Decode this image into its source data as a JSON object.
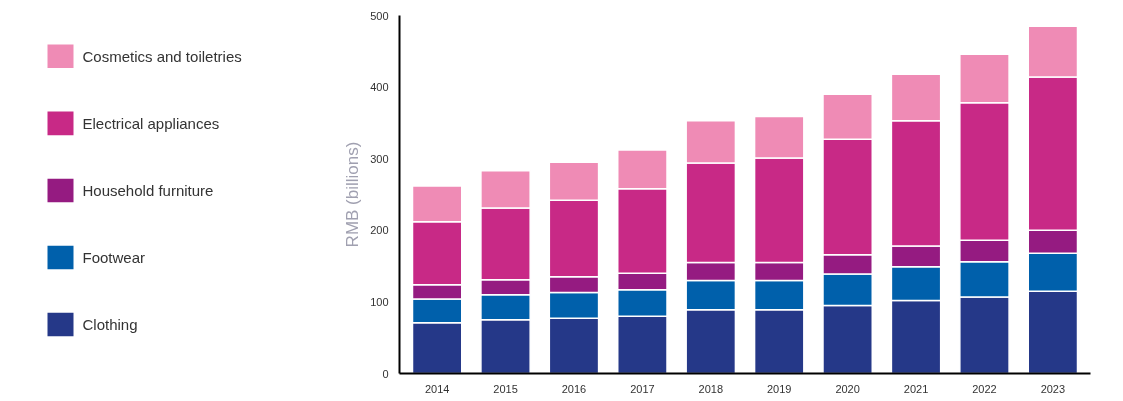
{
  "chart_data": {
    "type": "bar",
    "stacked": true,
    "ylabel": "RMB (billions)",
    "categories": [
      "2014",
      "2015",
      "2016",
      "2017",
      "2018",
      "2019",
      "2020",
      "2021",
      "2022",
      "2023"
    ],
    "series": [
      {
        "name": "Clothing",
        "color": "#253888",
        "values": [
          71,
          75,
          77,
          80,
          89,
          89,
          95,
          102,
          107,
          115
        ]
      },
      {
        "name": "Footwear",
        "color": "#0060ab",
        "values": [
          33,
          35,
          36,
          37,
          41,
          41,
          44,
          47,
          49,
          53
        ]
      },
      {
        "name": "Household furniture",
        "color": "#951b81",
        "values": [
          20,
          21,
          22,
          23,
          25,
          25,
          27,
          29,
          30,
          32
        ]
      },
      {
        "name": "Electrical appliances",
        "color": "#c82986",
        "values": [
          88,
          100,
          107,
          118,
          139,
          146,
          161,
          175,
          192,
          214
        ]
      },
      {
        "name": "Cosmetics and toiletries",
        "color": "#ef8bb5",
        "values": [
          50,
          52,
          53,
          54,
          59,
          58,
          63,
          65,
          68,
          71
        ]
      }
    ],
    "ylim": [
      0,
      500
    ],
    "yticks": [
      0,
      100,
      200,
      300,
      400,
      500
    ],
    "grid": false,
    "legend": "left"
  }
}
